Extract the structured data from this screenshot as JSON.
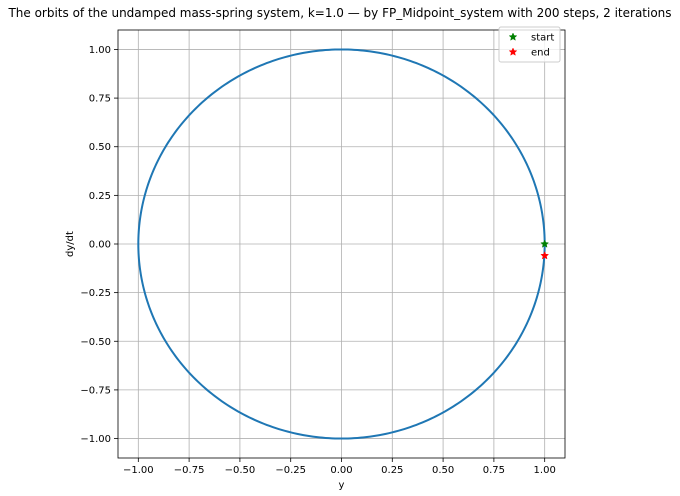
{
  "chart_data": {
    "type": "line",
    "title": "The orbits of the undamped mass-spring system, k=1.0 — by FP_Midpoint_system with 200 steps, 2 iterations",
    "xlabel": "y",
    "ylabel": "dy/dt",
    "xlim": [
      -1.1,
      1.1
    ],
    "ylim": [
      -1.1,
      1.1
    ],
    "xticks": [
      -1.0,
      -0.75,
      -0.5,
      -0.25,
      0.0,
      0.25,
      0.5,
      0.75,
      1.0
    ],
    "yticks": [
      -1.0,
      -0.75,
      -0.5,
      -0.25,
      0.0,
      0.25,
      0.5,
      0.75,
      1.0
    ],
    "xtick_labels": [
      "−1.00",
      "−0.75",
      "−0.50",
      "−0.25",
      "0.00",
      "0.25",
      "0.50",
      "0.75",
      "1.00"
    ],
    "ytick_labels": [
      "−1.00",
      "−0.75",
      "−0.50",
      "−0.25",
      "0.00",
      "0.25",
      "0.50",
      "0.75",
      "1.00"
    ],
    "grid": true,
    "orbit": {
      "shape": "circle",
      "center": [
        0.0,
        0.0
      ],
      "radius": 1.0,
      "color": "#1f77b4"
    },
    "markers": [
      {
        "name": "start",
        "x": 1.0,
        "y": 0.0,
        "color": "#008000",
        "symbol": "star"
      },
      {
        "name": "end",
        "x": 1.0,
        "y": -0.06,
        "color": "#ff0000",
        "symbol": "star"
      }
    ],
    "legend": {
      "placement": "upper-right",
      "entries": [
        "start",
        "end"
      ]
    }
  }
}
